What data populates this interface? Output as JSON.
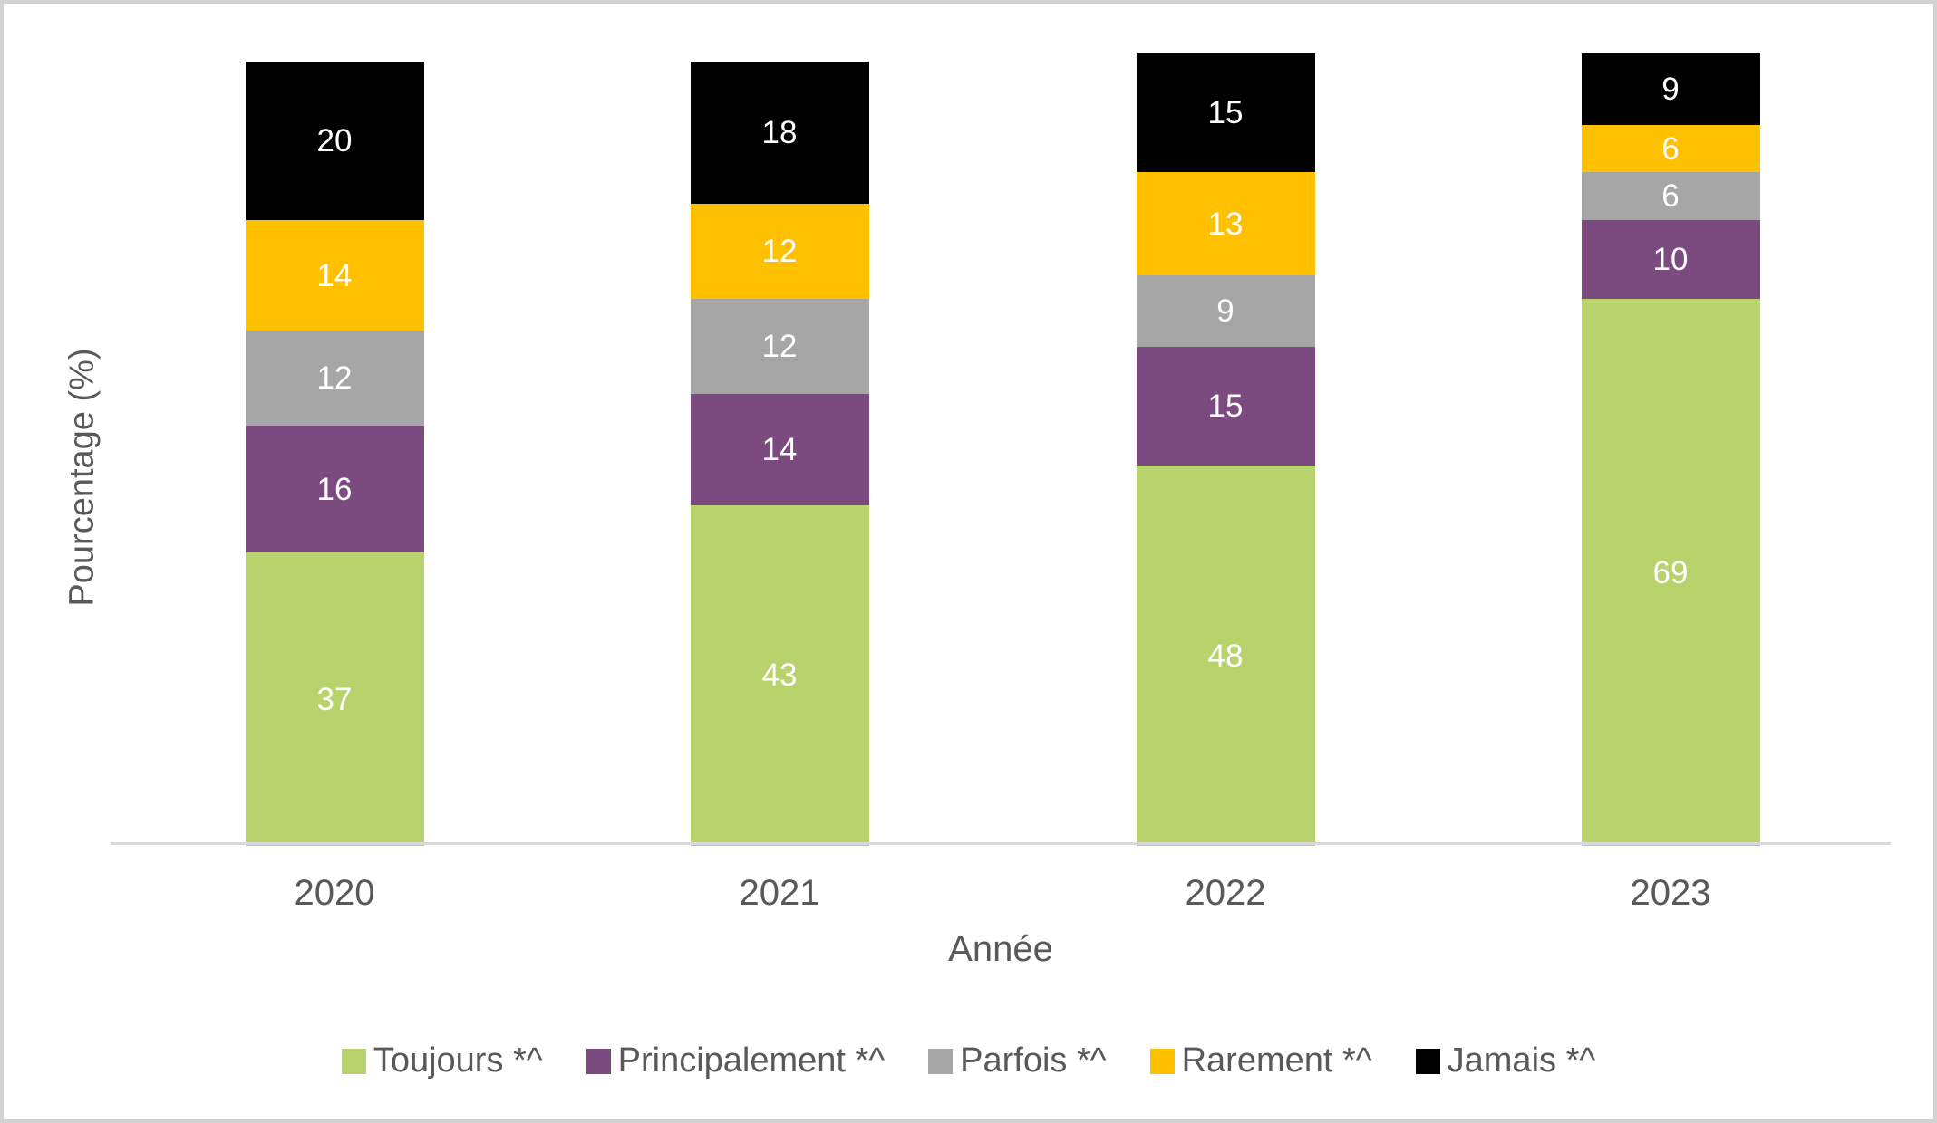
{
  "chart_data": {
    "type": "bar",
    "stacked": true,
    "title": "",
    "xlabel": "Année",
    "ylabel": "Pourcentage (%)",
    "ylim": [
      0,
      100
    ],
    "grid": false,
    "legend_position": "bottom",
    "categories": [
      "2020",
      "2021",
      "2022",
      "2023"
    ],
    "series": [
      {
        "name": "Toujours *^",
        "color": "#b8d26c",
        "values": [
          37,
          43,
          48,
          69
        ]
      },
      {
        "name": "Principalement *^",
        "color": "#7b4a7e",
        "values": [
          16,
          14,
          15,
          10
        ]
      },
      {
        "name": "Parfois *^",
        "color": "#a6a6a6",
        "values": [
          12,
          12,
          9,
          6
        ]
      },
      {
        "name": "Rarement *^",
        "color": "#ffc000",
        "values": [
          14,
          12,
          13,
          6
        ]
      },
      {
        "name": "Jamais *^",
        "color": "#000000",
        "values": [
          20,
          18,
          15,
          9
        ]
      }
    ],
    "data_label_color": "#ffffff"
  },
  "colors": {
    "axis_line": "#d9d9d9",
    "axis_text": "#595959",
    "background": "#ffffff",
    "frame_border": "#d2d2d2"
  }
}
